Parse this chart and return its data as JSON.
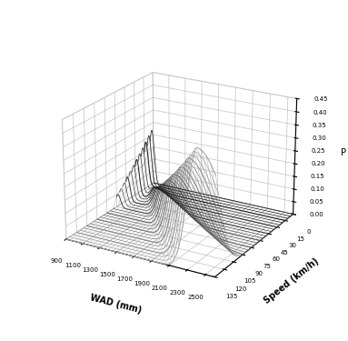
{
  "wad_min": 900,
  "wad_max": 2600,
  "wad_ticks": [
    900,
    1100,
    1300,
    1500,
    1700,
    1900,
    2100,
    2300,
    2500
  ],
  "speed_min": 0,
  "speed_max": 135,
  "speed_ticks": [
    0,
    15,
    30,
    45,
    60,
    75,
    90,
    105,
    120,
    135
  ],
  "p_min": 0.0,
  "p_max": 0.45,
  "p_ticks": [
    0.0,
    0.05,
    0.1,
    0.15,
    0.2,
    0.25,
    0.3,
    0.35,
    0.4,
    0.45
  ],
  "xlabel": "WAD (mm)",
  "ylabel": "Speed (km/h)",
  "zlabel": "P",
  "figsize": [
    3.83,
    3.75
  ],
  "dpi": 100,
  "elev": 22,
  "azim": -60
}
